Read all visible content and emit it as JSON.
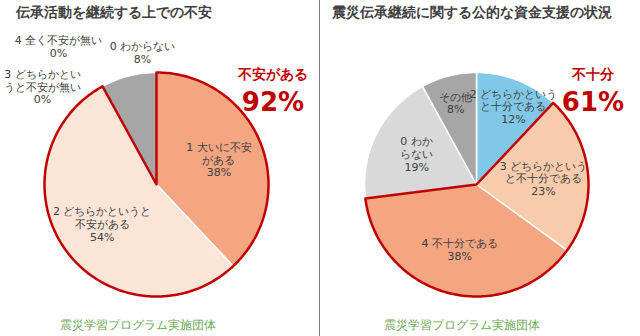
{
  "chart_data": [
    {
      "type": "pie",
      "title": "伝承活動を継続する上での不安",
      "caption": "震災学習プログラム実施団体",
      "categories": [
        "1 大いに不安がある",
        "2 どちらかというと不安がある",
        "3 どちらかというと不安が無い",
        "4 全く不安が無い",
        "0 わからない"
      ],
      "values": [
        38,
        54,
        0,
        0,
        8
      ],
      "value_labels": [
        "38%",
        "54%",
        "0%",
        "0%",
        "8%"
      ],
      "colors": [
        "#F4A582",
        "#FCE4D6",
        "#F8CBAD",
        "#D9D9D9",
        "#A6A6A6"
      ],
      "data_labels": true,
      "annotations": [
        {
          "text": "不安がある",
          "label": "92%",
          "categories": [
            "1 大いに不安がある",
            "2 どちらかというと不安がある"
          ]
        }
      ]
    },
    {
      "type": "pie",
      "title": "震災伝承継続に関する公的な資金支援の状況",
      "caption": "震災学習プログラム実施団体",
      "categories": [
        "2 どちらかというと十分である",
        "3 どちらかというと不十分である",
        "4 不十分である",
        "0 わからない",
        "その他"
      ],
      "values": [
        12,
        23,
        38,
        19,
        8
      ],
      "value_labels": [
        "12%",
        "23%",
        "38%",
        "19%",
        "8%"
      ],
      "colors": [
        "#80C8E8",
        "#F8CBAD",
        "#F4A582",
        "#D9D9D9",
        "#A6A6A6"
      ],
      "data_labels": true,
      "annotations": [
        {
          "text": "不十分",
          "label": "61%",
          "categories": [
            "3 どちらかというと不十分である",
            "4 不十分である"
          ]
        }
      ]
    }
  ]
}
